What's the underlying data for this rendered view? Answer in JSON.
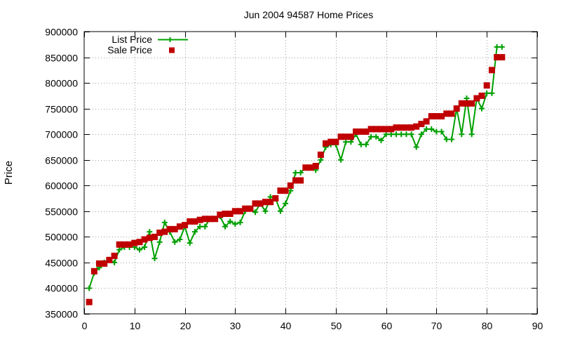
{
  "chart_data": {
    "type": "line",
    "title": "Jun 2004 94587 Home Prices",
    "xlabel": "",
    "ylabel": "Price",
    "xlim": [
      0,
      90
    ],
    "ylim": [
      350000,
      900000
    ],
    "xticks": [
      0,
      10,
      20,
      30,
      40,
      50,
      60,
      70,
      80,
      90
    ],
    "yticks": [
      350000,
      400000,
      450000,
      500000,
      550000,
      600000,
      650000,
      700000,
      750000,
      800000,
      850000,
      900000
    ],
    "grid": true,
    "legend_position": "top-left",
    "series": [
      {
        "name": "List Price",
        "style": "line-with-plus-markers",
        "color": "#00a000",
        "x": [
          1,
          2,
          3,
          4,
          5,
          6,
          7,
          8,
          9,
          10,
          11,
          12,
          13,
          14,
          15,
          16,
          17,
          18,
          19,
          20,
          21,
          22,
          23,
          24,
          25,
          26,
          27,
          28,
          29,
          30,
          31,
          32,
          33,
          34,
          35,
          36,
          37,
          38,
          39,
          40,
          41,
          42,
          43,
          44,
          45,
          46,
          47,
          48,
          49,
          50,
          51,
          52,
          53,
          54,
          55,
          56,
          57,
          58,
          59,
          60,
          61,
          62,
          63,
          64,
          65,
          66,
          67,
          68,
          69,
          70,
          71,
          72,
          73,
          74,
          75,
          76,
          77,
          78,
          79,
          80,
          81,
          82,
          83
        ],
        "values": [
          400000,
          430000,
          440000,
          450000,
          455000,
          450000,
          475000,
          480000,
          480000,
          480000,
          475000,
          480000,
          510000,
          458000,
          490000,
          528000,
          510000,
          490000,
          495000,
          520000,
          488000,
          510000,
          520000,
          520000,
          535000,
          535000,
          540000,
          520000,
          530000,
          525000,
          528000,
          550000,
          555000,
          548000,
          565000,
          550000,
          578000,
          575000,
          550000,
          565000,
          590000,
          625000,
          625000,
          635000,
          635000,
          630000,
          650000,
          675000,
          680000,
          680000,
          650000,
          685000,
          685000,
          700000,
          680000,
          680000,
          695000,
          695000,
          688000,
          700000,
          700000,
          700000,
          700000,
          700000,
          700000,
          675000,
          700000,
          710000,
          710000,
          705000,
          705000,
          690000,
          690000,
          750000,
          700000,
          770000,
          700000,
          770000,
          750000,
          780000,
          780000,
          870000,
          870000
        ]
      },
      {
        "name": "Sale Price",
        "style": "square-markers",
        "color": "#c00000",
        "x": [
          1,
          2,
          3,
          4,
          5,
          6,
          7,
          8,
          9,
          10,
          11,
          12,
          13,
          14,
          15,
          16,
          17,
          18,
          19,
          20,
          21,
          22,
          23,
          24,
          25,
          26,
          27,
          28,
          29,
          30,
          31,
          32,
          33,
          34,
          35,
          36,
          37,
          38,
          39,
          40,
          41,
          42,
          43,
          44,
          45,
          46,
          47,
          48,
          49,
          50,
          51,
          52,
          53,
          54,
          55,
          56,
          57,
          58,
          59,
          60,
          61,
          62,
          63,
          64,
          65,
          66,
          67,
          68,
          69,
          70,
          71,
          72,
          73,
          74,
          75,
          76,
          77,
          78,
          79,
          80,
          81,
          82,
          83
        ],
        "values": [
          373000,
          433000,
          448000,
          448000,
          455000,
          463000,
          485000,
          485000,
          485000,
          488000,
          490000,
          495000,
          498000,
          500000,
          508000,
          510000,
          515000,
          515000,
          520000,
          523000,
          530000,
          530000,
          533000,
          535000,
          535000,
          535000,
          543000,
          545000,
          545000,
          550000,
          550000,
          555000,
          555000,
          565000,
          565000,
          568000,
          568000,
          575000,
          590000,
          590000,
          600000,
          610000,
          610000,
          635000,
          635000,
          638000,
          660000,
          682000,
          685000,
          685000,
          695000,
          695000,
          695000,
          705000,
          705000,
          705000,
          710000,
          710000,
          710000,
          710000,
          710000,
          713000,
          713000,
          713000,
          713000,
          715000,
          720000,
          725000,
          735000,
          735000,
          735000,
          740000,
          740000,
          750000,
          760000,
          760000,
          760000,
          770000,
          775000,
          795000,
          825000,
          850000,
          850000
        ]
      }
    ]
  }
}
